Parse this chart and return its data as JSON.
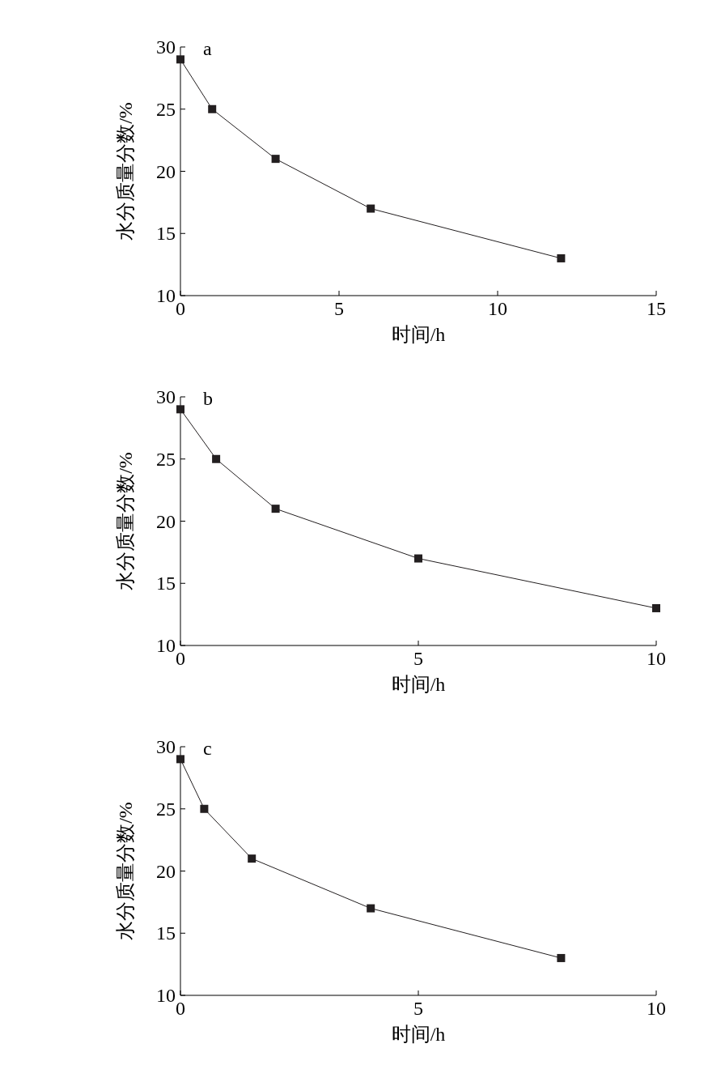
{
  "chart_data": [
    {
      "type": "line",
      "annotations": [
        "a"
      ],
      "xlabel": "时间/h",
      "ylabel": "水分质量分数/%",
      "x": [
        0,
        1,
        3,
        6,
        12
      ],
      "series": [
        {
          "color": "#231f20",
          "values": [
            29,
            25,
            21,
            17,
            13
          ]
        }
      ],
      "xlim": [
        0,
        15
      ],
      "xticks": [
        0,
        5,
        10,
        15
      ],
      "ylim": [
        10,
        30
      ],
      "yticks": [
        10,
        15,
        20,
        25,
        30
      ],
      "marker": "square",
      "line_style": "solid"
    },
    {
      "type": "line",
      "annotations": [
        "b"
      ],
      "xlabel": "时间/h",
      "ylabel": "水分质量分数/%",
      "x": [
        0,
        0.75,
        2,
        5,
        10
      ],
      "series": [
        {
          "color": "#231f20",
          "values": [
            29,
            25,
            21,
            17,
            13
          ]
        }
      ],
      "xlim": [
        0,
        10
      ],
      "xticks": [
        0,
        5,
        10
      ],
      "ylim": [
        10,
        30
      ],
      "yticks": [
        10,
        15,
        20,
        25,
        30
      ],
      "marker": "square",
      "line_style": "solid"
    },
    {
      "type": "line",
      "annotations": [
        "c"
      ],
      "xlabel": "时间/h",
      "ylabel": "水分质量分数/%",
      "x": [
        0,
        0.5,
        1.5,
        4,
        8
      ],
      "series": [
        {
          "color": "#231f20",
          "values": [
            29,
            25,
            21,
            17,
            13
          ]
        }
      ],
      "xlim": [
        0,
        10
      ],
      "xticks": [
        0,
        5,
        10
      ],
      "ylim": [
        10,
        30
      ],
      "yticks": [
        10,
        15,
        20,
        25,
        30
      ],
      "marker": "square",
      "line_style": "solid"
    }
  ]
}
